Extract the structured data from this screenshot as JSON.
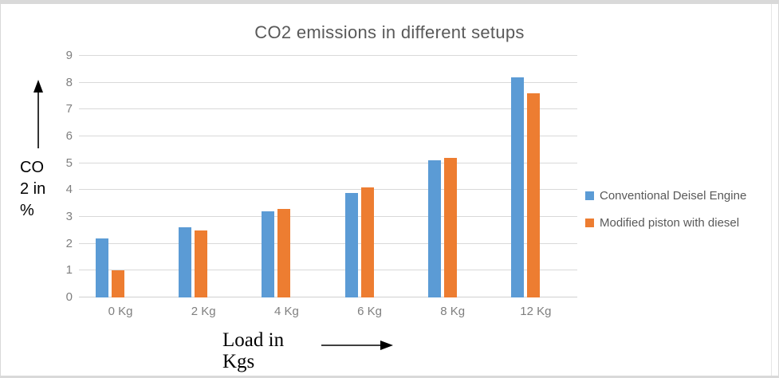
{
  "frame": {
    "title": "CO2 emissions in different setups",
    "y_axis_label_lines": [
      "CO",
      "2 in",
      "%"
    ],
    "x_axis_label_lines": [
      "Load in",
      "Kgs"
    ]
  },
  "colors": {
    "series_blue": "#5B9BD5",
    "series_orange": "#ED7D31",
    "gridline": "#D9D9D9",
    "axis_text": "#7F7F7F",
    "title_text": "#595959"
  },
  "chart_data": {
    "type": "bar",
    "title": "CO2 emissions in different setups",
    "categories": [
      "0 Kg",
      "2 Kg",
      "4 Kg",
      "6 Kg",
      "8 Kg",
      "12 Kg"
    ],
    "series": [
      {
        "name": "Conventional Deisel Engine",
        "color": "#5B9BD5",
        "values": [
          2.2,
          2.6,
          3.2,
          3.9,
          5.1,
          8.2
        ]
      },
      {
        "name": "Modified piston with diesel",
        "color": "#ED7D31",
        "values": [
          1.0,
          2.5,
          3.3,
          4.1,
          5.2,
          7.6
        ]
      }
    ],
    "xlabel": "Load in Kgs",
    "ylabel": "CO 2 in %",
    "ylim": [
      0,
      9
    ],
    "ytick_step": 1,
    "grid": true,
    "legend_position": "right"
  }
}
